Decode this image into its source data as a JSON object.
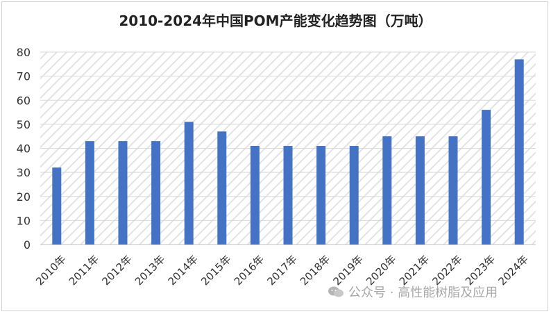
{
  "chart_data": {
    "type": "bar",
    "title": "2010-2024年中国POM产能变化趋势图（万吨）",
    "categories": [
      "2010年",
      "2011年",
      "2012年",
      "2013年",
      "2014年",
      "2015年",
      "2016年",
      "2017年",
      "2018年",
      "2019年",
      "2020年",
      "2021年",
      "2022年",
      "2023年",
      "2024年"
    ],
    "values": [
      32,
      43,
      43,
      43,
      51,
      47,
      41,
      41,
      41,
      41,
      45,
      45,
      45,
      56,
      77
    ],
    "ylim": [
      0,
      80
    ],
    "yticks": [
      0,
      10,
      20,
      30,
      40,
      50,
      60,
      70,
      80
    ],
    "xlabel": "",
    "ylabel": "",
    "grid": true,
    "bar_color": "#4472C4"
  },
  "watermark": {
    "text": "公众号 · 高性能树脂及应用",
    "icon": "wechat-icon"
  }
}
